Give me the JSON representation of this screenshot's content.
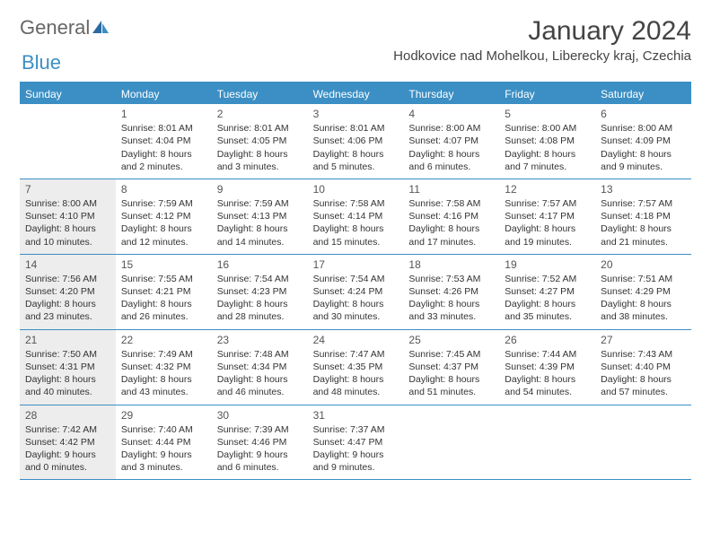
{
  "logo": {
    "text1": "General",
    "text2": "Blue"
  },
  "title": "January 2024",
  "location": "Hodkovice nad Mohelkou, Liberecky kraj, Czechia",
  "colors": {
    "accent": "#3b8fc4",
    "shaded": "#ededed",
    "text": "#333333"
  },
  "weekdays": [
    "Sunday",
    "Monday",
    "Tuesday",
    "Wednesday",
    "Thursday",
    "Friday",
    "Saturday"
  ],
  "weeks": [
    [
      {
        "day": "",
        "sunrise": "",
        "sunset": "",
        "daylight": "",
        "shaded": false
      },
      {
        "day": "1",
        "sunrise": "Sunrise: 8:01 AM",
        "sunset": "Sunset: 4:04 PM",
        "daylight": "Daylight: 8 hours and 2 minutes.",
        "shaded": false
      },
      {
        "day": "2",
        "sunrise": "Sunrise: 8:01 AM",
        "sunset": "Sunset: 4:05 PM",
        "daylight": "Daylight: 8 hours and 3 minutes.",
        "shaded": false
      },
      {
        "day": "3",
        "sunrise": "Sunrise: 8:01 AM",
        "sunset": "Sunset: 4:06 PM",
        "daylight": "Daylight: 8 hours and 5 minutes.",
        "shaded": false
      },
      {
        "day": "4",
        "sunrise": "Sunrise: 8:00 AM",
        "sunset": "Sunset: 4:07 PM",
        "daylight": "Daylight: 8 hours and 6 minutes.",
        "shaded": false
      },
      {
        "day": "5",
        "sunrise": "Sunrise: 8:00 AM",
        "sunset": "Sunset: 4:08 PM",
        "daylight": "Daylight: 8 hours and 7 minutes.",
        "shaded": false
      },
      {
        "day": "6",
        "sunrise": "Sunrise: 8:00 AM",
        "sunset": "Sunset: 4:09 PM",
        "daylight": "Daylight: 8 hours and 9 minutes.",
        "shaded": false
      }
    ],
    [
      {
        "day": "7",
        "sunrise": "Sunrise: 8:00 AM",
        "sunset": "Sunset: 4:10 PM",
        "daylight": "Daylight: 8 hours and 10 minutes.",
        "shaded": true
      },
      {
        "day": "8",
        "sunrise": "Sunrise: 7:59 AM",
        "sunset": "Sunset: 4:12 PM",
        "daylight": "Daylight: 8 hours and 12 minutes.",
        "shaded": false
      },
      {
        "day": "9",
        "sunrise": "Sunrise: 7:59 AM",
        "sunset": "Sunset: 4:13 PM",
        "daylight": "Daylight: 8 hours and 14 minutes.",
        "shaded": false
      },
      {
        "day": "10",
        "sunrise": "Sunrise: 7:58 AM",
        "sunset": "Sunset: 4:14 PM",
        "daylight": "Daylight: 8 hours and 15 minutes.",
        "shaded": false
      },
      {
        "day": "11",
        "sunrise": "Sunrise: 7:58 AM",
        "sunset": "Sunset: 4:16 PM",
        "daylight": "Daylight: 8 hours and 17 minutes.",
        "shaded": false
      },
      {
        "day": "12",
        "sunrise": "Sunrise: 7:57 AM",
        "sunset": "Sunset: 4:17 PM",
        "daylight": "Daylight: 8 hours and 19 minutes.",
        "shaded": false
      },
      {
        "day": "13",
        "sunrise": "Sunrise: 7:57 AM",
        "sunset": "Sunset: 4:18 PM",
        "daylight": "Daylight: 8 hours and 21 minutes.",
        "shaded": false
      }
    ],
    [
      {
        "day": "14",
        "sunrise": "Sunrise: 7:56 AM",
        "sunset": "Sunset: 4:20 PM",
        "daylight": "Daylight: 8 hours and 23 minutes.",
        "shaded": true
      },
      {
        "day": "15",
        "sunrise": "Sunrise: 7:55 AM",
        "sunset": "Sunset: 4:21 PM",
        "daylight": "Daylight: 8 hours and 26 minutes.",
        "shaded": false
      },
      {
        "day": "16",
        "sunrise": "Sunrise: 7:54 AM",
        "sunset": "Sunset: 4:23 PM",
        "daylight": "Daylight: 8 hours and 28 minutes.",
        "shaded": false
      },
      {
        "day": "17",
        "sunrise": "Sunrise: 7:54 AM",
        "sunset": "Sunset: 4:24 PM",
        "daylight": "Daylight: 8 hours and 30 minutes.",
        "shaded": false
      },
      {
        "day": "18",
        "sunrise": "Sunrise: 7:53 AM",
        "sunset": "Sunset: 4:26 PM",
        "daylight": "Daylight: 8 hours and 33 minutes.",
        "shaded": false
      },
      {
        "day": "19",
        "sunrise": "Sunrise: 7:52 AM",
        "sunset": "Sunset: 4:27 PM",
        "daylight": "Daylight: 8 hours and 35 minutes.",
        "shaded": false
      },
      {
        "day": "20",
        "sunrise": "Sunrise: 7:51 AM",
        "sunset": "Sunset: 4:29 PM",
        "daylight": "Daylight: 8 hours and 38 minutes.",
        "shaded": false
      }
    ],
    [
      {
        "day": "21",
        "sunrise": "Sunrise: 7:50 AM",
        "sunset": "Sunset: 4:31 PM",
        "daylight": "Daylight: 8 hours and 40 minutes.",
        "shaded": true
      },
      {
        "day": "22",
        "sunrise": "Sunrise: 7:49 AM",
        "sunset": "Sunset: 4:32 PM",
        "daylight": "Daylight: 8 hours and 43 minutes.",
        "shaded": false
      },
      {
        "day": "23",
        "sunrise": "Sunrise: 7:48 AM",
        "sunset": "Sunset: 4:34 PM",
        "daylight": "Daylight: 8 hours and 46 minutes.",
        "shaded": false
      },
      {
        "day": "24",
        "sunrise": "Sunrise: 7:47 AM",
        "sunset": "Sunset: 4:35 PM",
        "daylight": "Daylight: 8 hours and 48 minutes.",
        "shaded": false
      },
      {
        "day": "25",
        "sunrise": "Sunrise: 7:45 AM",
        "sunset": "Sunset: 4:37 PM",
        "daylight": "Daylight: 8 hours and 51 minutes.",
        "shaded": false
      },
      {
        "day": "26",
        "sunrise": "Sunrise: 7:44 AM",
        "sunset": "Sunset: 4:39 PM",
        "daylight": "Daylight: 8 hours and 54 minutes.",
        "shaded": false
      },
      {
        "day": "27",
        "sunrise": "Sunrise: 7:43 AM",
        "sunset": "Sunset: 4:40 PM",
        "daylight": "Daylight: 8 hours and 57 minutes.",
        "shaded": false
      }
    ],
    [
      {
        "day": "28",
        "sunrise": "Sunrise: 7:42 AM",
        "sunset": "Sunset: 4:42 PM",
        "daylight": "Daylight: 9 hours and 0 minutes.",
        "shaded": true
      },
      {
        "day": "29",
        "sunrise": "Sunrise: 7:40 AM",
        "sunset": "Sunset: 4:44 PM",
        "daylight": "Daylight: 9 hours and 3 minutes.",
        "shaded": false
      },
      {
        "day": "30",
        "sunrise": "Sunrise: 7:39 AM",
        "sunset": "Sunset: 4:46 PM",
        "daylight": "Daylight: 9 hours and 6 minutes.",
        "shaded": false
      },
      {
        "day": "31",
        "sunrise": "Sunrise: 7:37 AM",
        "sunset": "Sunset: 4:47 PM",
        "daylight": "Daylight: 9 hours and 9 minutes.",
        "shaded": false
      },
      {
        "day": "",
        "sunrise": "",
        "sunset": "",
        "daylight": "",
        "shaded": false
      },
      {
        "day": "",
        "sunrise": "",
        "sunset": "",
        "daylight": "",
        "shaded": false
      },
      {
        "day": "",
        "sunrise": "",
        "sunset": "",
        "daylight": "",
        "shaded": false
      }
    ]
  ]
}
